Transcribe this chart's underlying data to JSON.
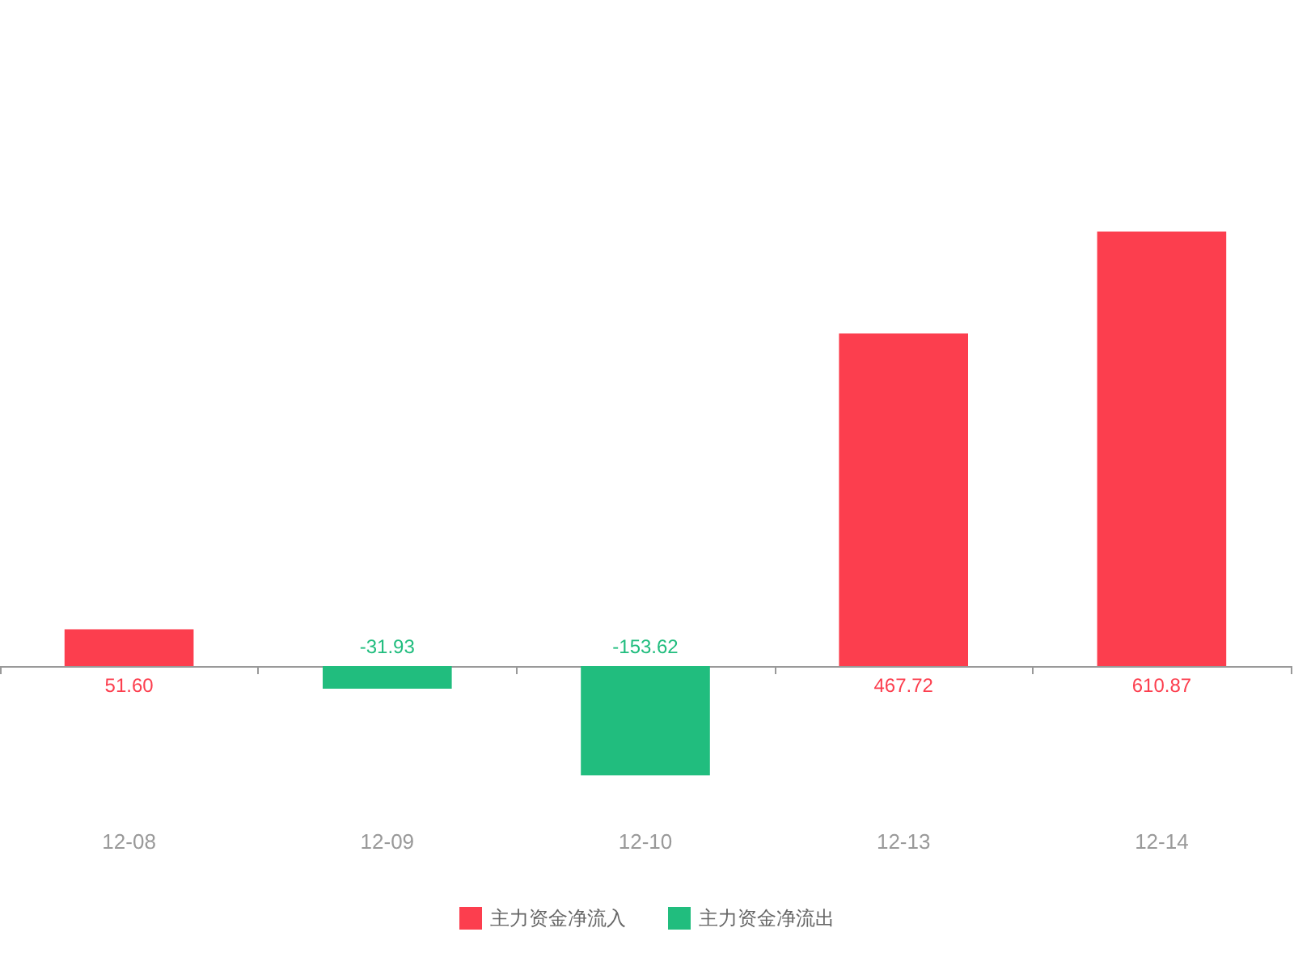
{
  "chart_data": {
    "type": "bar",
    "categories": [
      "12-08",
      "12-09",
      "12-10",
      "12-13",
      "12-14"
    ],
    "stacked": true,
    "legend": "bottom",
    "grid": false,
    "series": [
      {
        "name": "主力资金净流入",
        "color": "#fc3e4e",
        "values": [
          51.6,
          null,
          null,
          467.72,
          610.87
        ],
        "value_labels": [
          "51.60",
          null,
          null,
          "467.72",
          "610.87"
        ]
      },
      {
        "name": "主力资金净流出",
        "color": "#21bd7e",
        "values": [
          null,
          -31.93,
          -153.62,
          null,
          null
        ],
        "value_labels": [
          null,
          "-31.93",
          "-153.62",
          null,
          null
        ]
      }
    ]
  }
}
